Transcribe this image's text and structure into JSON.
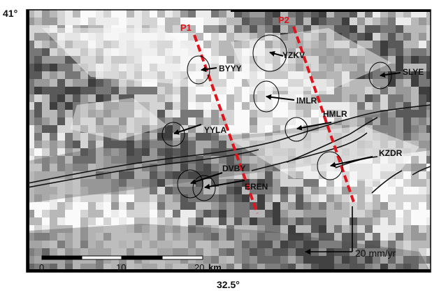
{
  "frame": {
    "lat_label": "41°",
    "lon_label": "32.5°"
  },
  "profiles": [
    {
      "id": "p1",
      "label": "P1"
    },
    {
      "id": "p2",
      "label": "P2"
    }
  ],
  "stations": [
    {
      "id": "byyy",
      "label": "BYYY"
    },
    {
      "id": "yzkv",
      "label": "YZKV"
    },
    {
      "id": "slye",
      "label": "SLYE"
    },
    {
      "id": "imlr",
      "label": "IMLR"
    },
    {
      "id": "hmlr",
      "label": "HMLR"
    },
    {
      "id": "yyla",
      "label": "YYLA"
    },
    {
      "id": "kzdr",
      "label": "KZDR"
    },
    {
      "id": "dvby",
      "label": "DVBY"
    },
    {
      "id": "eren",
      "label": "EREN"
    }
  ],
  "scale_bar": {
    "ticks": [
      "0",
      "10",
      "20"
    ],
    "unit": "km"
  },
  "reference_vector": {
    "label": "20 mm/yr"
  },
  "colors": {
    "profile": "#e0141c",
    "fault": "#111111",
    "vector": "#000000"
  }
}
